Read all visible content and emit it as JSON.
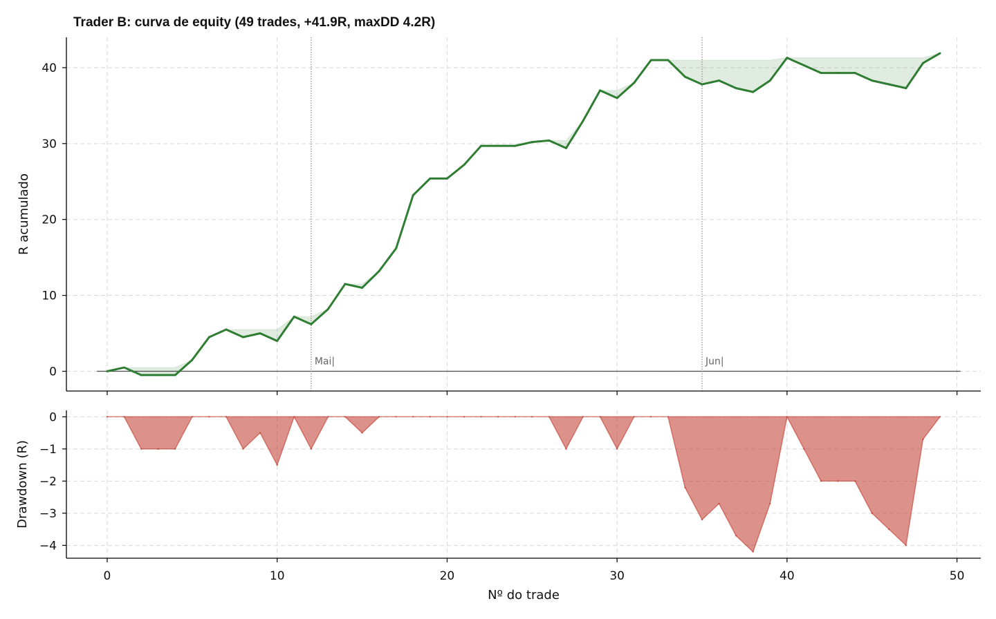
{
  "chart_data": [
    {
      "type": "area",
      "title": "Trader B: curva de equity (49 trades, +41.9R, maxDD 4.2R)",
      "ylabel": "R acumulado",
      "xlim": [
        -2.4,
        51.4
      ],
      "ylim": [
        -2.6,
        44.0
      ],
      "yticks": [
        0,
        10,
        20,
        30,
        40
      ],
      "grid": true,
      "x": [
        0,
        1,
        2,
        3,
        4,
        5,
        6,
        7,
        8,
        9,
        10,
        11,
        12,
        13,
        14,
        15,
        16,
        17,
        18,
        19,
        20,
        21,
        22,
        23,
        24,
        25,
        26,
        27,
        28,
        29,
        30,
        31,
        32,
        33,
        34,
        35,
        36,
        37,
        38,
        39,
        40,
        41,
        42,
        43,
        44,
        45,
        46,
        47,
        48,
        49
      ],
      "series": [
        {
          "role": "equity",
          "color": "#2e7d32",
          "values": [
            0,
            0.5,
            -0.5,
            -0.5,
            -0.5,
            1.5,
            4.5,
            5.5,
            4.5,
            5.0,
            4.0,
            7.2,
            6.2,
            8.2,
            11.5,
            11.0,
            13.2,
            16.2,
            23.2,
            25.4,
            25.4,
            27.2,
            29.7,
            29.7,
            29.7,
            30.2,
            30.4,
            29.4,
            33.0,
            37.0,
            36.0,
            38.0,
            41.0,
            41.0,
            38.8,
            37.8,
            38.3,
            37.3,
            36.8,
            38.3,
            41.3,
            40.3,
            39.3,
            39.3,
            39.3,
            38.3,
            37.8,
            37.3,
            40.6,
            41.9
          ]
        },
        {
          "role": "running-peak",
          "color": "#2e7d32",
          "values": [
            0,
            0.5,
            0.5,
            0.5,
            0.5,
            1.5,
            4.5,
            5.5,
            5.5,
            5.5,
            5.5,
            7.2,
            7.2,
            8.2,
            11.5,
            11.5,
            13.2,
            16.2,
            23.2,
            25.4,
            25.4,
            27.2,
            29.7,
            29.7,
            29.7,
            30.2,
            30.4,
            30.4,
            33.0,
            37.0,
            37.0,
            38.0,
            41.0,
            41.0,
            41.0,
            41.0,
            41.0,
            41.0,
            41.0,
            41.0,
            41.3,
            41.3,
            41.3,
            41.3,
            41.3,
            41.3,
            41.3,
            41.3,
            41.3,
            41.9
          ]
        }
      ],
      "annotations": [
        {
          "x": 12,
          "label": "Mai|"
        },
        {
          "x": 35,
          "label": "Jun|"
        }
      ]
    },
    {
      "type": "area",
      "ylabel": "Drawdown (R)",
      "xlabel": "Nº do trade",
      "xlim": [
        -2.4,
        51.4
      ],
      "ylim": [
        -4.4,
        0.2
      ],
      "xticks": [
        0,
        10,
        20,
        30,
        40,
        50
      ],
      "yticks": [
        0,
        -1,
        -2,
        -3,
        -4
      ],
      "grid": true,
      "x": [
        0,
        1,
        2,
        3,
        4,
        5,
        6,
        7,
        8,
        9,
        10,
        11,
        12,
        13,
        14,
        15,
        16,
        17,
        18,
        19,
        20,
        21,
        22,
        23,
        24,
        25,
        26,
        27,
        28,
        29,
        30,
        31,
        32,
        33,
        34,
        35,
        36,
        37,
        38,
        39,
        40,
        41,
        42,
        43,
        44,
        45,
        46,
        47,
        48,
        49
      ],
      "series": [
        {
          "role": "drawdown",
          "color": "#c0392b",
          "values": [
            0,
            0,
            -1,
            -1,
            -1,
            0,
            0,
            0,
            -1,
            -0.5,
            -1.5,
            0,
            -1,
            0,
            0,
            -0.5,
            0,
            0,
            0,
            0,
            0,
            0,
            0,
            0,
            0,
            0,
            0,
            -1,
            0,
            0,
            -1,
            0,
            0,
            0,
            -2.2,
            -3.2,
            -2.7,
            -3.7,
            -4.2,
            -2.7,
            0,
            -1,
            -2,
            -2,
            -2,
            -3,
            -3.5,
            -4,
            -0.7,
            0
          ]
        }
      ]
    }
  ]
}
